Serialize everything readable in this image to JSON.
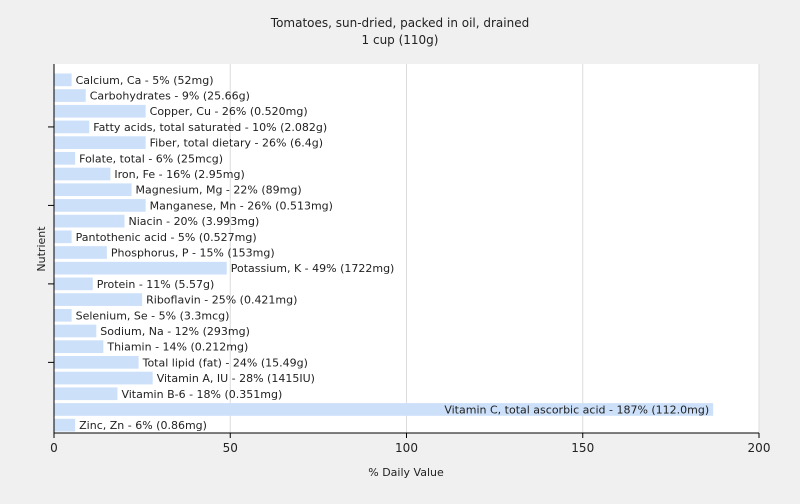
{
  "chart_data": {
    "type": "bar",
    "orientation": "horizontal",
    "title": "Tomatoes, sun-dried, packed in oil, drained",
    "subtitle": "1 cup (110g)",
    "xlabel": "% Daily Value",
    "ylabel": "Nutrient",
    "xlim": [
      0,
      200
    ],
    "xticks": [
      0,
      50,
      100,
      150,
      200
    ],
    "grid": true,
    "bar_color": "#cce0fa",
    "categories": [
      "Calcium, Ca",
      "Carbohydrates",
      "Copper, Cu",
      "Fatty acids, total saturated",
      "Fiber, total dietary",
      "Folate, total",
      "Iron, Fe",
      "Magnesium, Mg",
      "Manganese, Mn",
      "Niacin",
      "Pantothenic acid",
      "Phosphorus, P",
      "Potassium, K",
      "Protein",
      "Riboflavin",
      "Selenium, Se",
      "Sodium, Na",
      "Thiamin",
      "Total lipid (fat)",
      "Vitamin A, IU",
      "Vitamin B-6",
      "Vitamin C, total ascorbic acid",
      "Zinc, Zn"
    ],
    "values": [
      5,
      9,
      26,
      10,
      26,
      6,
      16,
      22,
      26,
      20,
      5,
      15,
      49,
      11,
      25,
      5,
      12,
      14,
      24,
      28,
      18,
      187,
      6
    ],
    "labels": [
      "Calcium, Ca - 5% (52mg)",
      "Carbohydrates - 9% (25.66g)",
      "Copper, Cu - 26% (0.520mg)",
      "Fatty acids, total saturated - 10% (2.082g)",
      "Fiber, total dietary - 26% (6.4g)",
      "Folate, total - 6% (25mcg)",
      "Iron, Fe - 16% (2.95mg)",
      "Magnesium, Mg - 22% (89mg)",
      "Manganese, Mn - 26% (0.513mg)",
      "Niacin - 20% (3.993mg)",
      "Pantothenic acid - 5% (0.527mg)",
      "Phosphorus, P - 15% (153mg)",
      "Potassium, K - 49% (1722mg)",
      "Protein - 11% (5.57g)",
      "Riboflavin - 25% (0.421mg)",
      "Selenium, Se - 5% (3.3mcg)",
      "Sodium, Na - 12% (293mg)",
      "Thiamin - 14% (0.212mg)",
      "Total lipid (fat) - 24% (15.49g)",
      "Vitamin A, IU - 28% (1415IU)",
      "Vitamin B-6 - 18% (0.351mg)",
      "Vitamin C, total ascorbic acid - 187% (112.0mg)",
      "Zinc, Zn - 6% (0.86mg)"
    ]
  }
}
